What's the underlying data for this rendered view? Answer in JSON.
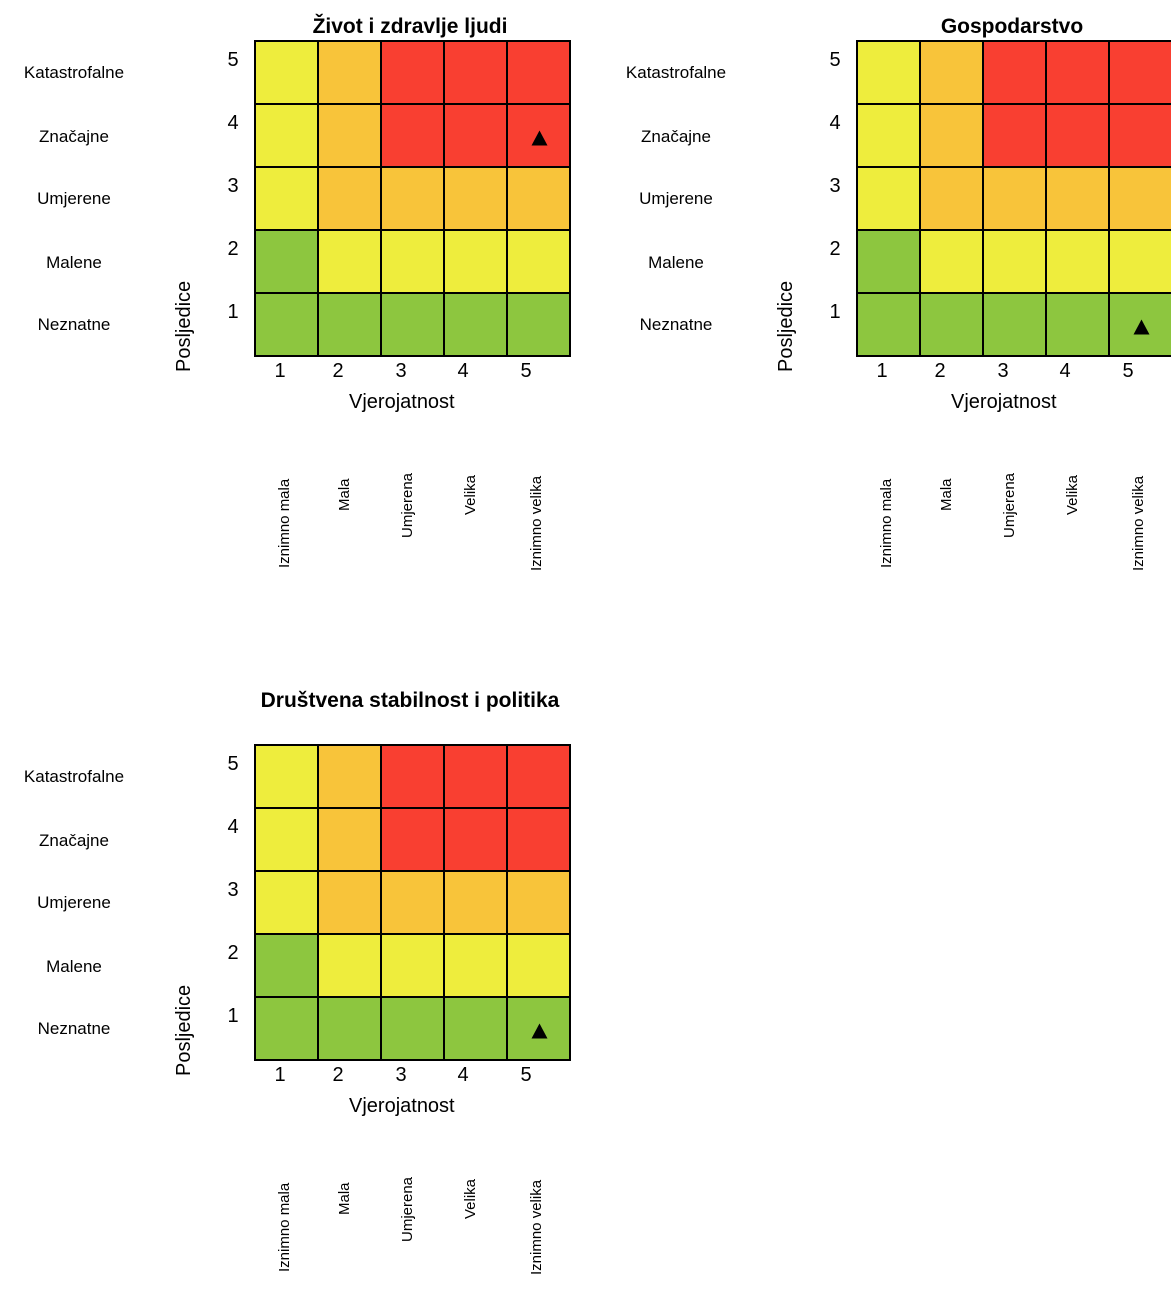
{
  "colors": {
    "green": "#8dc63f",
    "yellow": "#eeed3d",
    "orange": "#f8c43a",
    "red": "#f93f31"
  },
  "severity_labels": [
    "Katastrofalne",
    "Značajne",
    "Umjerene",
    "Malene",
    "Neznatne"
  ],
  "probability_labels": [
    "Iznimno mala",
    "Mala",
    "Umjerena",
    "Velika",
    "Iznimno velika"
  ],
  "x_axis_label": "Vjerojatnost",
  "y_axis_label": "Posljedice",
  "x_ticks": [
    "1",
    "2",
    "3",
    "4",
    "5"
  ],
  "y_ticks": [
    "5",
    "4",
    "3",
    "2",
    "1"
  ],
  "chart_data": [
    {
      "type": "heatmap",
      "title": "Život i zdravlje ljudi",
      "xlabel": "Vjerojatnost",
      "ylabel": "Posljedice",
      "x": [
        1,
        2,
        3,
        4,
        5
      ],
      "y": [
        5,
        4,
        3,
        2,
        1
      ],
      "levels": [
        [
          "yellow",
          "orange",
          "red",
          "red",
          "red"
        ],
        [
          "yellow",
          "orange",
          "red",
          "red",
          "red"
        ],
        [
          "yellow",
          "orange",
          "orange",
          "orange",
          "orange"
        ],
        [
          "green",
          "yellow",
          "yellow",
          "yellow",
          "yellow"
        ],
        [
          "green",
          "green",
          "green",
          "green",
          "green"
        ]
      ],
      "marker": {
        "x": 5,
        "y": 4,
        "symbol": "▲"
      }
    },
    {
      "type": "heatmap",
      "title": "Gospodarstvo",
      "xlabel": "Vjerojatnost",
      "ylabel": "Posljedice",
      "x": [
        1,
        2,
        3,
        4,
        5
      ],
      "y": [
        5,
        4,
        3,
        2,
        1
      ],
      "levels": [
        [
          "yellow",
          "orange",
          "red",
          "red",
          "red"
        ],
        [
          "yellow",
          "orange",
          "red",
          "red",
          "red"
        ],
        [
          "yellow",
          "orange",
          "orange",
          "orange",
          "orange"
        ],
        [
          "green",
          "yellow",
          "yellow",
          "yellow",
          "yellow"
        ],
        [
          "green",
          "green",
          "green",
          "green",
          "green"
        ]
      ],
      "marker": {
        "x": 5,
        "y": 1,
        "symbol": "▲"
      }
    },
    {
      "type": "heatmap",
      "title": "Društvena stabilnost i politika",
      "xlabel": "Vjerojatnost",
      "ylabel": "Posljedice",
      "x": [
        1,
        2,
        3,
        4,
        5
      ],
      "y": [
        5,
        4,
        3,
        2,
        1
      ],
      "levels": [
        [
          "yellow",
          "orange",
          "red",
          "red",
          "red"
        ],
        [
          "yellow",
          "orange",
          "red",
          "red",
          "red"
        ],
        [
          "yellow",
          "orange",
          "orange",
          "orange",
          "orange"
        ],
        [
          "green",
          "yellow",
          "yellow",
          "yellow",
          "yellow"
        ],
        [
          "green",
          "green",
          "green",
          "green",
          "green"
        ]
      ],
      "marker": {
        "x": 5,
        "y": 1,
        "symbol": "▲"
      }
    }
  ]
}
